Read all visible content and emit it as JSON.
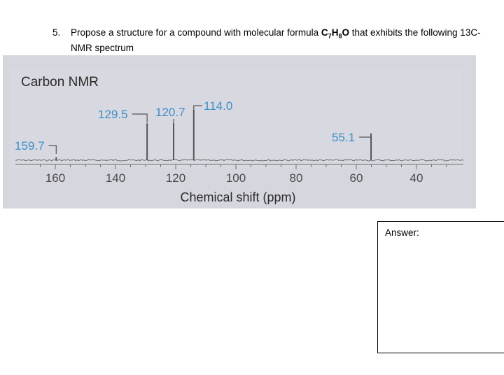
{
  "question": {
    "number": "5.",
    "text_before": "Propose a structure for a compound with molecular formula ",
    "formula": {
      "c": "C",
      "c_sub": "7",
      "h": "H",
      "h_sub": "8",
      "o": "O"
    },
    "text_after": " that exhibits the following 13C-",
    "line2": "NMR spectrum"
  },
  "spectrum_title": "Carbon NMR",
  "answer_label": "Answer:",
  "chart_data": {
    "type": "bar",
    "title": "Carbon NMR",
    "xlabel": "Chemical shift (ppm)",
    "ylabel": "",
    "xlim": [
      170,
      25
    ],
    "x_reversed": true,
    "xticks": [
      160,
      140,
      120,
      100,
      80,
      60,
      40
    ],
    "peaks": [
      {
        "label": "159.7",
        "x": 159.7,
        "height": 0.05
      },
      {
        "label": "129.5",
        "x": 129.5,
        "height": 0.62
      },
      {
        "label": "120.7",
        "x": 120.7,
        "height": 0.62
      },
      {
        "label": "114.0",
        "x": 114.0,
        "height": 0.85
      },
      {
        "label": "55.1",
        "x": 55.1,
        "height": 0.45
      }
    ],
    "line_color": "#555555",
    "label_color": "#3a8fc9"
  }
}
